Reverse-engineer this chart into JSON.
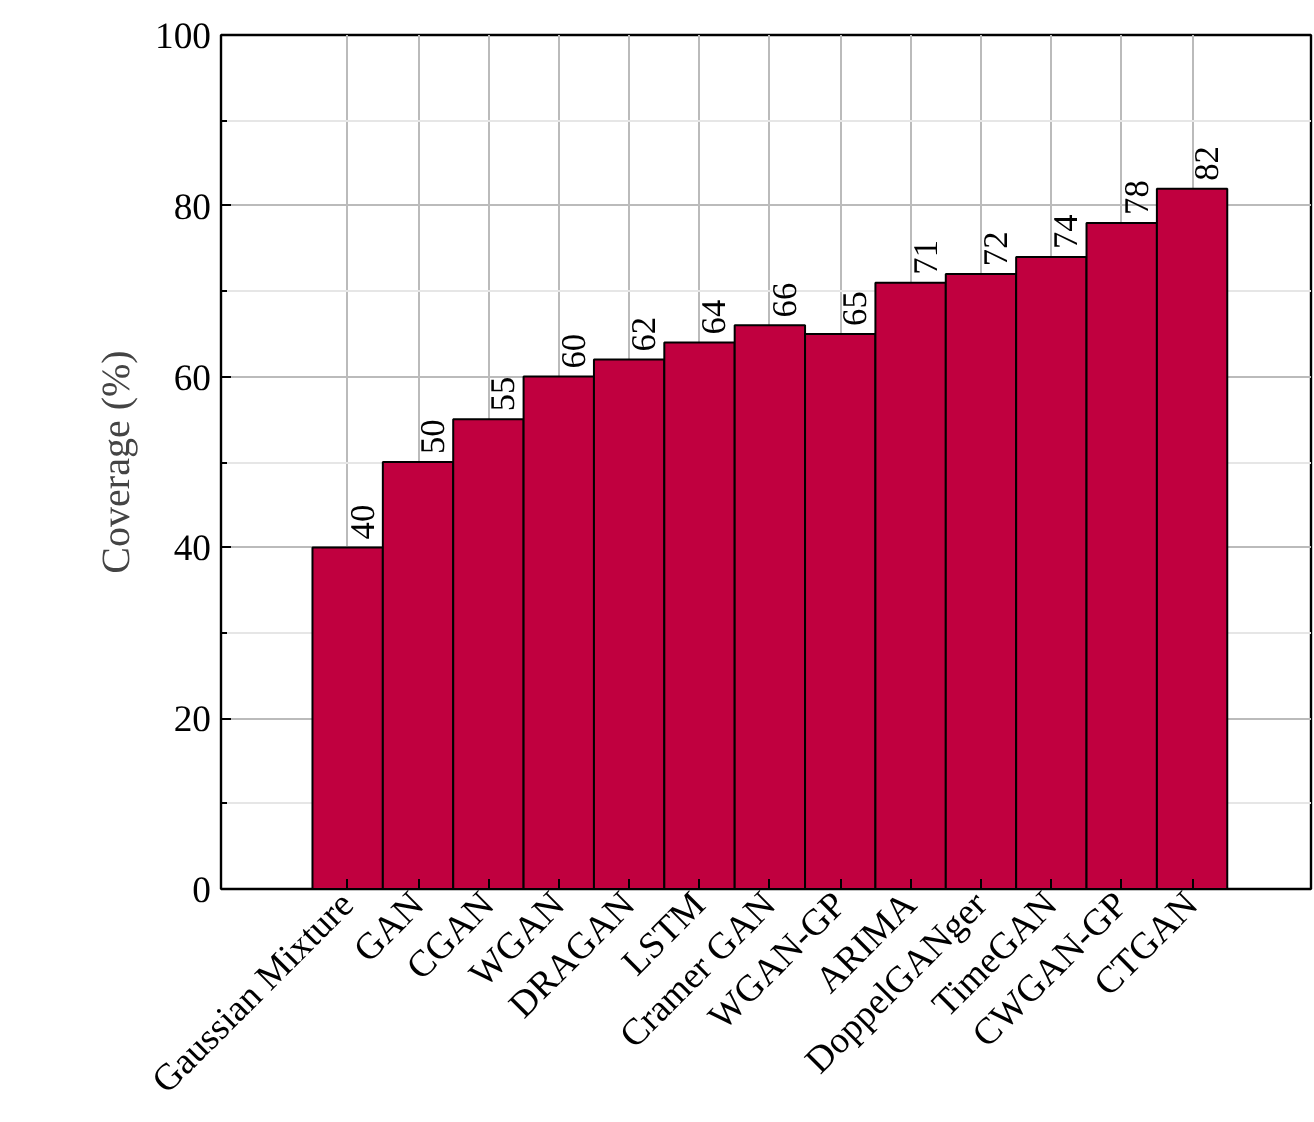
{
  "chart_data": {
    "type": "bar",
    "ylabel": "Coverage (%)",
    "categories": [
      "Gaussian Mixture",
      "GAN",
      "CGAN",
      "WGAN",
      "DRAGAN",
      "LSTM",
      "Cramer GAN",
      "WGAN-GP",
      "ARIMA",
      "DoppelGANger",
      "TimeGAN",
      "CWGAN-GP",
      "CTGAN"
    ],
    "values": [
      40,
      50,
      55,
      60,
      62,
      64,
      66,
      65,
      71,
      72,
      74,
      78,
      82
    ],
    "color": "#c0003f",
    "ylim": [
      0,
      100
    ],
    "yticks": [
      0,
      20,
      40,
      60,
      80,
      100
    ],
    "grid": true,
    "data_labels": true
  }
}
